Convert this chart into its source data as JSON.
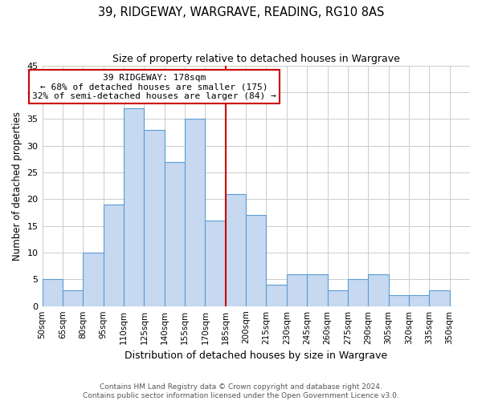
{
  "title": "39, RIDGEWAY, WARGRAVE, READING, RG10 8AS",
  "subtitle": "Size of property relative to detached houses in Wargrave",
  "xlabel": "Distribution of detached houses by size in Wargrave",
  "ylabel": "Number of detached properties",
  "bins": [
    "50sqm",
    "65sqm",
    "80sqm",
    "95sqm",
    "110sqm",
    "125sqm",
    "140sqm",
    "155sqm",
    "170sqm",
    "185sqm",
    "200sqm",
    "215sqm",
    "230sqm",
    "245sqm",
    "260sqm",
    "275sqm",
    "290sqm",
    "305sqm",
    "320sqm",
    "335sqm",
    "350sqm"
  ],
  "values": [
    5,
    3,
    10,
    19,
    37,
    33,
    27,
    35,
    16,
    21,
    17,
    4,
    6,
    6,
    3,
    5,
    6,
    2,
    2,
    3,
    0
  ],
  "bar_color": "#c6d9f0",
  "bar_edge_color": "#5b9bd5",
  "marker_bin_index": 8,
  "marker_label": "39 RIDGEWAY: 178sqm",
  "annotation_line1": "← 68% of detached houses are smaller (175)",
  "annotation_line2": "32% of semi-detached houses are larger (84) →",
  "marker_color": "#cc0000",
  "annotation_box_edge": "#cc0000",
  "ylim": [
    0,
    45
  ],
  "yticks": [
    0,
    5,
    10,
    15,
    20,
    25,
    30,
    35,
    40,
    45
  ],
  "footer1": "Contains HM Land Registry data © Crown copyright and database right 2024.",
  "footer2": "Contains public sector information licensed under the Open Government Licence v3.0.",
  "background_color": "#ffffff",
  "grid_color": "#cccccc",
  "title_fontsize": 10.5,
  "subtitle_fontsize": 9,
  "xlabel_fontsize": 9,
  "ylabel_fontsize": 8.5,
  "xtick_fontsize": 7.5,
  "ytick_fontsize": 8,
  "annotation_fontsize": 8,
  "footer_fontsize": 6.5
}
